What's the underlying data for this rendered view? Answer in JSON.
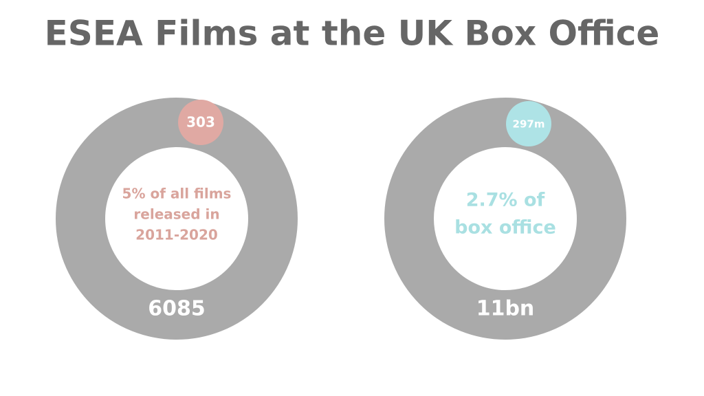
{
  "title": "ESEA Films at the UK Box Office",
  "panels": [
    {
      "highlight": "303",
      "description": [
        "5% of all films",
        "released in",
        "2011-2020"
      ],
      "total": "6085"
    },
    {
      "highlight": "297m",
      "description": [
        "2.7% of",
        "box office"
      ],
      "total": "11bn"
    }
  ]
}
